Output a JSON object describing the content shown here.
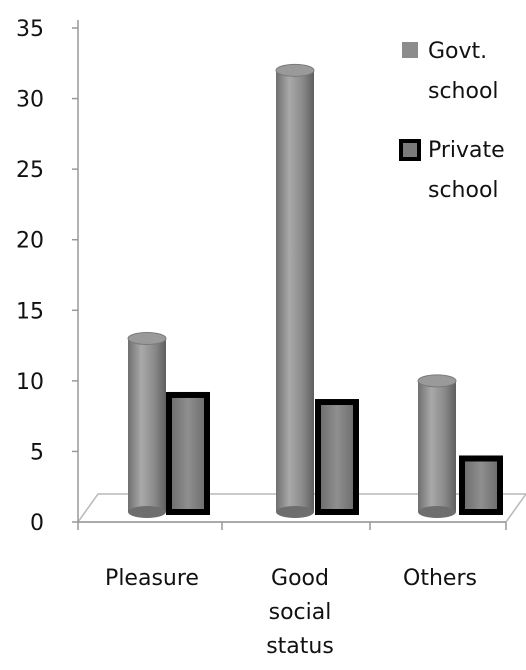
{
  "chart_data": {
    "type": "bar",
    "categories": [
      [
        "Pleasure"
      ],
      [
        "Good",
        "social",
        "status"
      ],
      [
        "Others"
      ]
    ],
    "series": [
      {
        "name": [
          "Govt.",
          "school"
        ],
        "values": [
          13,
          32,
          10
        ],
        "color": "#8c8c8c"
      },
      {
        "name": [
          "Private",
          "school"
        ],
        "values": [
          9,
          8.5,
          4.5
        ],
        "color": "#7a7a7a",
        "border": "#000000"
      }
    ],
    "yticks": [
      0,
      5,
      10,
      15,
      20,
      25,
      30,
      35
    ],
    "ylim": [
      0,
      35
    ],
    "grid": false,
    "legend_position": "top-right"
  }
}
